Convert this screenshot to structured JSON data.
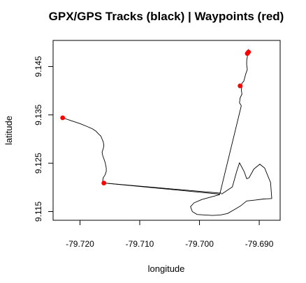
{
  "chart_data": {
    "type": "scatter",
    "title": "GPX/GPS Tracks (black) | Waypoints (red)",
    "xlabel": "longitude",
    "ylabel": "latitude",
    "xlim": [
      -79.7245,
      -79.6865
    ],
    "ylim": [
      9.1132,
      9.1504
    ],
    "x_ticks": [
      -79.72,
      -79.71,
      -79.7,
      -79.69
    ],
    "x_tick_labels": [
      "-79.720",
      "-79.710",
      "-79.700",
      "-79.690"
    ],
    "y_ticks": [
      9.115,
      9.125,
      9.135,
      9.145
    ],
    "y_tick_labels": [
      "9.115",
      "9.125",
      "9.135",
      "9.145"
    ],
    "grid": false,
    "colors": {
      "track": "#000000",
      "waypoint": "#ff0000"
    },
    "series": [
      {
        "kind": "track",
        "x": [
          -79.7229,
          -79.7215,
          -79.72,
          -79.7188,
          -79.7179,
          -79.7173,
          -79.717,
          -79.7165,
          -79.7163,
          -79.7161,
          -79.716,
          -79.7161,
          -79.7163,
          -79.7162,
          -79.716,
          -79.7158,
          -79.7157,
          -79.7156,
          -79.7156,
          -79.7158,
          -79.7161,
          -79.7162,
          -79.716
        ],
        "y": [
          9.1344,
          9.1338,
          9.1332,
          9.1326,
          9.1321,
          9.1316,
          9.1312,
          9.1306,
          9.13,
          9.1294,
          9.1287,
          9.128,
          9.1273,
          9.1266,
          9.1259,
          9.1252,
          9.1246,
          9.124,
          9.1233,
          9.1226,
          9.122,
          9.1214,
          9.1209
        ]
      },
      {
        "kind": "track",
        "x": [
          -79.716,
          -79.6963
        ],
        "y": [
          9.1209,
          9.1188
        ]
      },
      {
        "kind": "track",
        "x": [
          -79.716,
          -79.6966
        ],
        "y": [
          9.1209,
          9.1186
        ]
      },
      {
        "kind": "track",
        "x": [
          -79.6966,
          -79.693
        ],
        "y": [
          9.1186,
          9.1369
        ]
      },
      {
        "kind": "track",
        "x": [
          -79.693,
          -79.6933,
          -79.6932,
          -79.6929,
          -79.693,
          -79.6929,
          -79.693,
          -79.6928,
          -79.6926
        ],
        "y": [
          9.1369,
          9.1375,
          9.1385,
          9.1393,
          9.1402,
          9.1408,
          9.1412,
          9.1417,
          9.1419
        ]
      },
      {
        "kind": "track",
        "x": [
          -79.6926,
          -79.6923,
          -79.692,
          -79.6921,
          -79.6921,
          -79.692,
          -79.6919,
          -79.6919,
          -79.6918
        ],
        "y": [
          9.1419,
          9.1433,
          9.1444,
          9.1453,
          9.1462,
          9.147,
          9.1477,
          9.1482,
          9.1486
        ]
      },
      {
        "kind": "track",
        "x": [
          -79.6963,
          -79.6945,
          -79.6938,
          -79.6933,
          -79.6925,
          -79.6921,
          -79.6917,
          -79.6909,
          -79.6899,
          -79.6891,
          -79.6881,
          -79.6879,
          -79.6893,
          -79.6906,
          -79.6921,
          -79.6931,
          -79.6943,
          -79.6953,
          -79.6965,
          -79.6978,
          -79.6991,
          -79.7004,
          -79.7012,
          -79.7015,
          -79.7009,
          -79.6996,
          -79.6981,
          -79.6966
        ],
        "y": [
          9.1186,
          9.1201,
          9.1232,
          9.1251,
          9.1232,
          9.1218,
          9.122,
          9.1238,
          9.1248,
          9.124,
          9.121,
          9.1177,
          9.1176,
          9.1174,
          9.1172,
          9.1162,
          9.1153,
          9.1146,
          9.1143,
          9.1142,
          9.1143,
          9.1144,
          9.115,
          9.116,
          9.1168,
          9.1175,
          9.118,
          9.1185
        ]
      },
      {
        "kind": "waypoints",
        "x": [
          -79.7229,
          -79.716,
          -79.6932,
          -79.692,
          -79.6918
        ],
        "y": [
          9.1344,
          9.1209,
          9.141,
          9.1477,
          9.148
        ]
      }
    ]
  }
}
